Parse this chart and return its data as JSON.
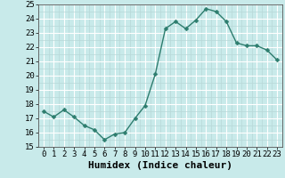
{
  "x": [
    0,
    1,
    2,
    3,
    4,
    5,
    6,
    7,
    8,
    9,
    10,
    11,
    12,
    13,
    14,
    15,
    16,
    17,
    18,
    19,
    20,
    21,
    22,
    23
  ],
  "y": [
    17.5,
    17.1,
    17.6,
    17.1,
    16.5,
    16.2,
    15.5,
    15.9,
    16.0,
    17.0,
    17.9,
    20.1,
    23.3,
    23.8,
    23.3,
    23.9,
    24.7,
    24.5,
    23.8,
    22.3,
    22.1,
    22.1,
    21.8,
    21.1
  ],
  "line_color": "#2d7d6e",
  "marker": "D",
  "marker_size": 2.5,
  "line_width": 1.0,
  "bg_color": "#c8eaea",
  "grid_major_color": "#ffffff",
  "grid_minor_color": "#b8d8d8",
  "xlabel": "Humidex (Indice chaleur)",
  "xlabel_fontsize": 8,
  "ylim": [
    15,
    25
  ],
  "xlim": [
    -0.5,
    23.5
  ],
  "yticks": [
    15,
    16,
    17,
    18,
    19,
    20,
    21,
    22,
    23,
    24,
    25
  ],
  "xticks": [
    0,
    1,
    2,
    3,
    4,
    5,
    6,
    7,
    8,
    9,
    10,
    11,
    12,
    13,
    14,
    15,
    16,
    17,
    18,
    19,
    20,
    21,
    22,
    23
  ],
  "tick_fontsize": 6.5
}
